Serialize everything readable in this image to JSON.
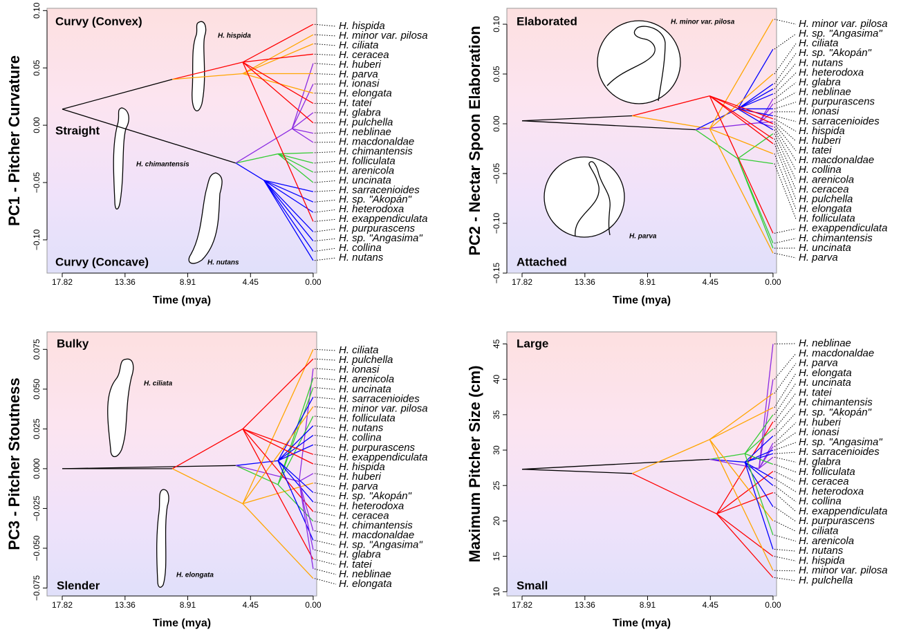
{
  "chart_data": [
    {
      "type": "traitgram",
      "y_label": "PC1 - Pitcher Curvature",
      "x_label": "Time (mya)",
      "xlim": [
        18.9,
        -0.25
      ],
      "xticks": [
        17.82,
        13.36,
        8.91,
        4.45,
        {
          "value": 0,
          "label": "0.00"
        }
      ],
      "ylim": [
        -0.129,
        0.102
      ],
      "yticks": [
        {
          "value": -0.1,
          "label": "−0.10"
        },
        {
          "value": -0.05,
          "label": "−0.05"
        },
        {
          "value": 0,
          "label": "0.00"
        },
        {
          "value": 0.05,
          "label": "0.05"
        },
        {
          "value": 0.1,
          "label": "0.10"
        }
      ],
      "annotations": [
        "Curvy (Convex)",
        "Straight",
        "Curvy (Concave)",
        "H. hispida",
        "H. chimantensis",
        "H. nutans"
      ],
      "branches": [
        {
          "color": "#000000",
          "x": [
            17.82,
            10.0
          ],
          "y": [
            0.014,
            0.04
          ]
        },
        {
          "color": "#000000",
          "x": [
            17.82,
            5.5
          ],
          "y": [
            0.014,
            -0.033
          ]
        },
        {
          "color": "#ff0000",
          "x": [
            10.0,
            5.0
          ],
          "y": [
            0.04,
            0.055
          ]
        },
        {
          "color": "#ffa500",
          "x": [
            10.0,
            5.0
          ],
          "y": [
            0.04,
            0.045
          ]
        },
        {
          "color": "#0000ff",
          "x": [
            5.5,
            3.5
          ],
          "y": [
            -0.033,
            -0.048
          ]
        },
        {
          "color": "#33cc33",
          "x": [
            5.5,
            2.5
          ],
          "y": [
            -0.033,
            -0.025
          ]
        },
        {
          "color": "#8a2be2",
          "x": [
            5.5,
            1.5
          ],
          "y": [
            -0.033,
            -0.003
          ]
        }
      ],
      "tips": {
        "names": [
          "H. hispida",
          "H. minor var. pilosa",
          "H. ciliata",
          "H. ceracea",
          "H. huberi",
          "H. parva",
          "H. ionasi",
          "H. elongata",
          "H. tatei",
          "H. glabra",
          "H. pulchella",
          "H. neblinae",
          "H. macdonaldae",
          "H. chimantensis",
          "H. folliculata",
          "H. arenicola",
          "H. uncinata",
          "H. sarracenioides",
          "H. sp. \"Akopán\"",
          "H. heterodoxa",
          "H. exappendiculata",
          "H. purpurascens",
          "H. sp. \"Angasima\"",
          "H. collina",
          "H. nutans"
        ],
        "values": [
          0.088,
          0.079,
          0.071,
          0.062,
          0.054,
          0.045,
          0.036,
          0.028,
          0.019,
          0.011,
          0.002,
          -0.007,
          -0.015,
          -0.024,
          -0.033,
          -0.041,
          -0.05,
          -0.058,
          -0.067,
          -0.076,
          -0.084,
          -0.093,
          -0.101,
          -0.11,
          -0.118
        ],
        "colors": [
          "#ff0000",
          "#ffa500",
          "#ffa500",
          "#ff0000",
          "#8a2be2",
          "#ffa500",
          "#8a2be2",
          "#ffa500",
          "#ff0000",
          "#8a2be2",
          "#ff0000",
          "#8a2be2",
          "#8a2be2",
          "#33cc33",
          "#33cc33",
          "#33cc33",
          "#33cc33",
          "#0000ff",
          "#0000ff",
          "#0000ff",
          "#ff0000",
          "#0000ff",
          "#0000ff",
          "#0000ff",
          "#0000ff"
        ]
      }
    },
    {
      "type": "traitgram",
      "y_label": "PC2 - Nectar Spoon Elaboration",
      "x_label": "Time (mya)",
      "xlim": [
        18.9,
        -0.25
      ],
      "xticks": [
        17.82,
        13.36,
        8.91,
        4.45,
        {
          "value": 0,
          "label": "0.00"
        }
      ],
      "ylim": [
        -0.15,
        0.116
      ],
      "yticks": [
        {
          "value": -0.15,
          "label": "−0.15"
        },
        {
          "value": -0.1,
          "label": "−0.10"
        },
        {
          "value": -0.05,
          "label": "−0.05"
        },
        {
          "value": 0,
          "label": "0.00"
        },
        {
          "value": 0.05,
          "label": "0.05"
        },
        {
          "value": 0.1,
          "label": "0.10"
        }
      ],
      "annotations": [
        "Elaborated",
        "Attached",
        "H. minor var. pilosa",
        "H. parva"
      ],
      "branches": [
        {
          "color": "#000000",
          "x": [
            17.82,
            10.0
          ],
          "y": [
            0.003,
            0.008
          ]
        },
        {
          "color": "#000000",
          "x": [
            17.82,
            5.5
          ],
          "y": [
            0.003,
            -0.006
          ]
        },
        {
          "color": "#ff0000",
          "x": [
            10.0,
            4.5
          ],
          "y": [
            0.008,
            0.028
          ]
        },
        {
          "color": "#ffa500",
          "x": [
            10.0,
            4.5
          ],
          "y": [
            0.008,
            -0.005
          ]
        },
        {
          "color": "#0000ff",
          "x": [
            5.5,
            2.5
          ],
          "y": [
            -0.006,
            0.015
          ]
        },
        {
          "color": "#33cc33",
          "x": [
            5.5,
            2.5
          ],
          "y": [
            -0.006,
            -0.035
          ]
        },
        {
          "color": "#8a2be2",
          "x": [
            5.5,
            1.0
          ],
          "y": [
            -0.006,
            0.001
          ]
        }
      ],
      "tips": {
        "names": [
          "H. minor var. pilosa",
          "H. sp. \"Angasima\"",
          "H. ciliata",
          "H. sp. \"Akopán\"",
          "H. nutans",
          "H. heterodoxa",
          "H. glabra",
          "H. neblinae",
          "H. purpurascens",
          "H. ionasi",
          "H. sarracenioides",
          "H. hispida",
          "H. huberi",
          "H. tatei",
          "H. macdonaldae",
          "H. collina",
          "H. arenicola",
          "H. ceracea",
          "H. pulchella",
          "H. elongata",
          "H. folliculata",
          "H. exappendiculata",
          "H. chimantensis",
          "H. uncinata",
          "H. parva"
        ],
        "values": [
          0.105,
          0.075,
          0.05,
          0.04,
          0.035,
          0.03,
          0.025,
          0.02,
          0.015,
          0.012,
          0.008,
          0.005,
          0.002,
          0,
          -0.003,
          -0.006,
          -0.01,
          -0.015,
          -0.02,
          -0.03,
          -0.04,
          -0.11,
          -0.12,
          -0.125,
          -0.13
        ],
        "colors": [
          "#ffa500",
          "#0000ff",
          "#ffa500",
          "#0000ff",
          "#0000ff",
          "#0000ff",
          "#8a2be2",
          "#8a2be2",
          "#0000ff",
          "#8a2be2",
          "#0000ff",
          "#ff0000",
          "#8a2be2",
          "#ff0000",
          "#8a2be2",
          "#0000ff",
          "#33cc33",
          "#ff0000",
          "#ff0000",
          "#ffa500",
          "#33cc33",
          "#ff0000",
          "#33cc33",
          "#33cc33",
          "#ffa500"
        ]
      }
    },
    {
      "type": "traitgram",
      "y_label": "PC3 - Pitcher Stoutness",
      "x_label": "Time (mya)",
      "xlim": [
        18.9,
        -0.25
      ],
      "xticks": [
        17.82,
        13.36,
        8.91,
        4.45,
        {
          "value": 0,
          "label": "0.00"
        }
      ],
      "ylim": [
        -0.08,
        0.086
      ],
      "yticks": [
        {
          "value": -0.075,
          "label": "−0.075"
        },
        {
          "value": -0.05,
          "label": "−0.050"
        },
        {
          "value": -0.025,
          "label": "−0.025"
        },
        {
          "value": 0,
          "label": "0.000"
        },
        {
          "value": 0.025,
          "label": "0.025"
        },
        {
          "value": 0.05,
          "label": "0.050"
        },
        {
          "value": 0.075,
          "label": "0.075"
        }
      ],
      "annotations": [
        "Bulky",
        "Slender",
        "H. ciliata",
        "H. elongata"
      ],
      "branches": [
        {
          "color": "#000000",
          "x": [
            17.82,
            10.0
          ],
          "y": [
            0,
            0
          ]
        },
        {
          "color": "#000000",
          "x": [
            17.82,
            5.5
          ],
          "y": [
            0,
            0.002
          ]
        },
        {
          "color": "#ff0000",
          "x": [
            10.0,
            5.0
          ],
          "y": [
            0,
            0.025
          ]
        },
        {
          "color": "#ffa500",
          "x": [
            10.0,
            5.0
          ],
          "y": [
            0,
            -0.022
          ]
        },
        {
          "color": "#0000ff",
          "x": [
            5.5,
            2.5
          ],
          "y": [
            0.002,
            0.005
          ]
        },
        {
          "color": "#33cc33",
          "x": [
            5.5,
            2.5
          ],
          "y": [
            0.002,
            -0.01
          ]
        },
        {
          "color": "#8a2be2",
          "x": [
            5.5,
            1.0
          ],
          "y": [
            0.002,
            -0.008
          ]
        }
      ],
      "tips": {
        "names": [
          "H. ciliata",
          "H. pulchella",
          "H. ionasi",
          "H. arenicola",
          "H. uncinata",
          "H. sarracenioides",
          "H. minor var. pilosa",
          "H. folliculata",
          "H. nutans",
          "H. collina",
          "H. purpurascens",
          "H. exappendiculata",
          "H. hispida",
          "H. huberi",
          "H. parva",
          "H. sp. \"Akopán\"",
          "H. heterodoxa",
          "H. ceracea",
          "H. chimantensis",
          "H. macdonaldae",
          "H. sp. \"Angasima\"",
          "H. glabra",
          "H. tatei",
          "H. neblinae",
          "H. elongata"
        ],
        "values": [
          0.075,
          0.069,
          0.063,
          0.057,
          0.051,
          0.045,
          0.039,
          0.033,
          0.027,
          0.021,
          0.015,
          0.009,
          0.003,
          -0.003,
          -0.009,
          -0.015,
          -0.021,
          -0.027,
          -0.033,
          -0.039,
          -0.045,
          -0.051,
          -0.057,
          -0.063,
          -0.069
        ],
        "colors": [
          "#ffa500",
          "#ff0000",
          "#8a2be2",
          "#33cc33",
          "#33cc33",
          "#0000ff",
          "#ffa500",
          "#33cc33",
          "#0000ff",
          "#0000ff",
          "#0000ff",
          "#ff0000",
          "#ff0000",
          "#8a2be2",
          "#ffa500",
          "#0000ff",
          "#0000ff",
          "#ff0000",
          "#33cc33",
          "#8a2be2",
          "#0000ff",
          "#8a2be2",
          "#ff0000",
          "#8a2be2",
          "#ffa500"
        ]
      }
    },
    {
      "type": "traitgram",
      "y_label": "Maximum Pitcher Size (cm)",
      "x_label": "Time (mya)",
      "xlim": [
        18.9,
        -0.25
      ],
      "xticks": [
        17.82,
        13.36,
        8.91,
        4.45,
        {
          "value": 0,
          "label": "0.00"
        }
      ],
      "ylim": [
        9.4,
        46.7
      ],
      "yticks": [
        10,
        15,
        20,
        25,
        30,
        35,
        40,
        45
      ],
      "annotations": [
        "Large",
        "Small"
      ],
      "branches": [
        {
          "color": "#000000",
          "x": [
            17.82,
            10.0
          ],
          "y": [
            27.3,
            26.7
          ]
        },
        {
          "color": "#000000",
          "x": [
            17.82,
            4.5
          ],
          "y": [
            27.3,
            28.7
          ]
        },
        {
          "color": "#ff0000",
          "x": [
            10.0,
            4.0
          ],
          "y": [
            26.7,
            21
          ]
        },
        {
          "color": "#ffa500",
          "x": [
            10.0,
            4.5
          ],
          "y": [
            26.7,
            31.5
          ]
        },
        {
          "color": "#0000ff",
          "x": [
            4.5,
            2.0
          ],
          "y": [
            28.7,
            28.3
          ]
        },
        {
          "color": "#33cc33",
          "x": [
            4.5,
            2.0
          ],
          "y": [
            28.7,
            29.5
          ]
        },
        {
          "color": "#8a2be2",
          "x": [
            4.5,
            1.0
          ],
          "y": [
            28.7,
            27.4
          ]
        }
      ],
      "tips": {
        "names": [
          "H. neblinae",
          "H. macdonaldae",
          "H. parva",
          "H. elongata",
          "H. uncinata",
          "H. tatei",
          "H. chimantensis",
          "H. sp. \"Akopán\"",
          "H. huberi",
          "H. ionasi",
          "H. sp. \"Angasima\"",
          "H. sarracenioides",
          "H. glabra",
          "H. folliculata",
          "H. ceracea",
          "H. heterodoxa",
          "H. collina",
          "H. exappendiculata",
          "H. purpurascens",
          "H. ciliata",
          "H. arenicola",
          "H. nutans",
          "H. hispida",
          "H. minor var. pilosa",
          "H. pulchella"
        ],
        "values": [
          45,
          40,
          38,
          36,
          35,
          34,
          33,
          32,
          31,
          30.5,
          30,
          29.5,
          29,
          28,
          27,
          26,
          25,
          24,
          22,
          20,
          18,
          16,
          15,
          13,
          12
        ],
        "colors": [
          "#8a2be2",
          "#8a2be2",
          "#ffa500",
          "#ffa500",
          "#33cc33",
          "#ff0000",
          "#33cc33",
          "#0000ff",
          "#8a2be2",
          "#8a2be2",
          "#0000ff",
          "#0000ff",
          "#8a2be2",
          "#33cc33",
          "#ff0000",
          "#0000ff",
          "#0000ff",
          "#ff0000",
          "#0000ff",
          "#ffa500",
          "#33cc33",
          "#0000ff",
          "#ff0000",
          "#ffa500",
          "#ff0000"
        ]
      }
    }
  ]
}
